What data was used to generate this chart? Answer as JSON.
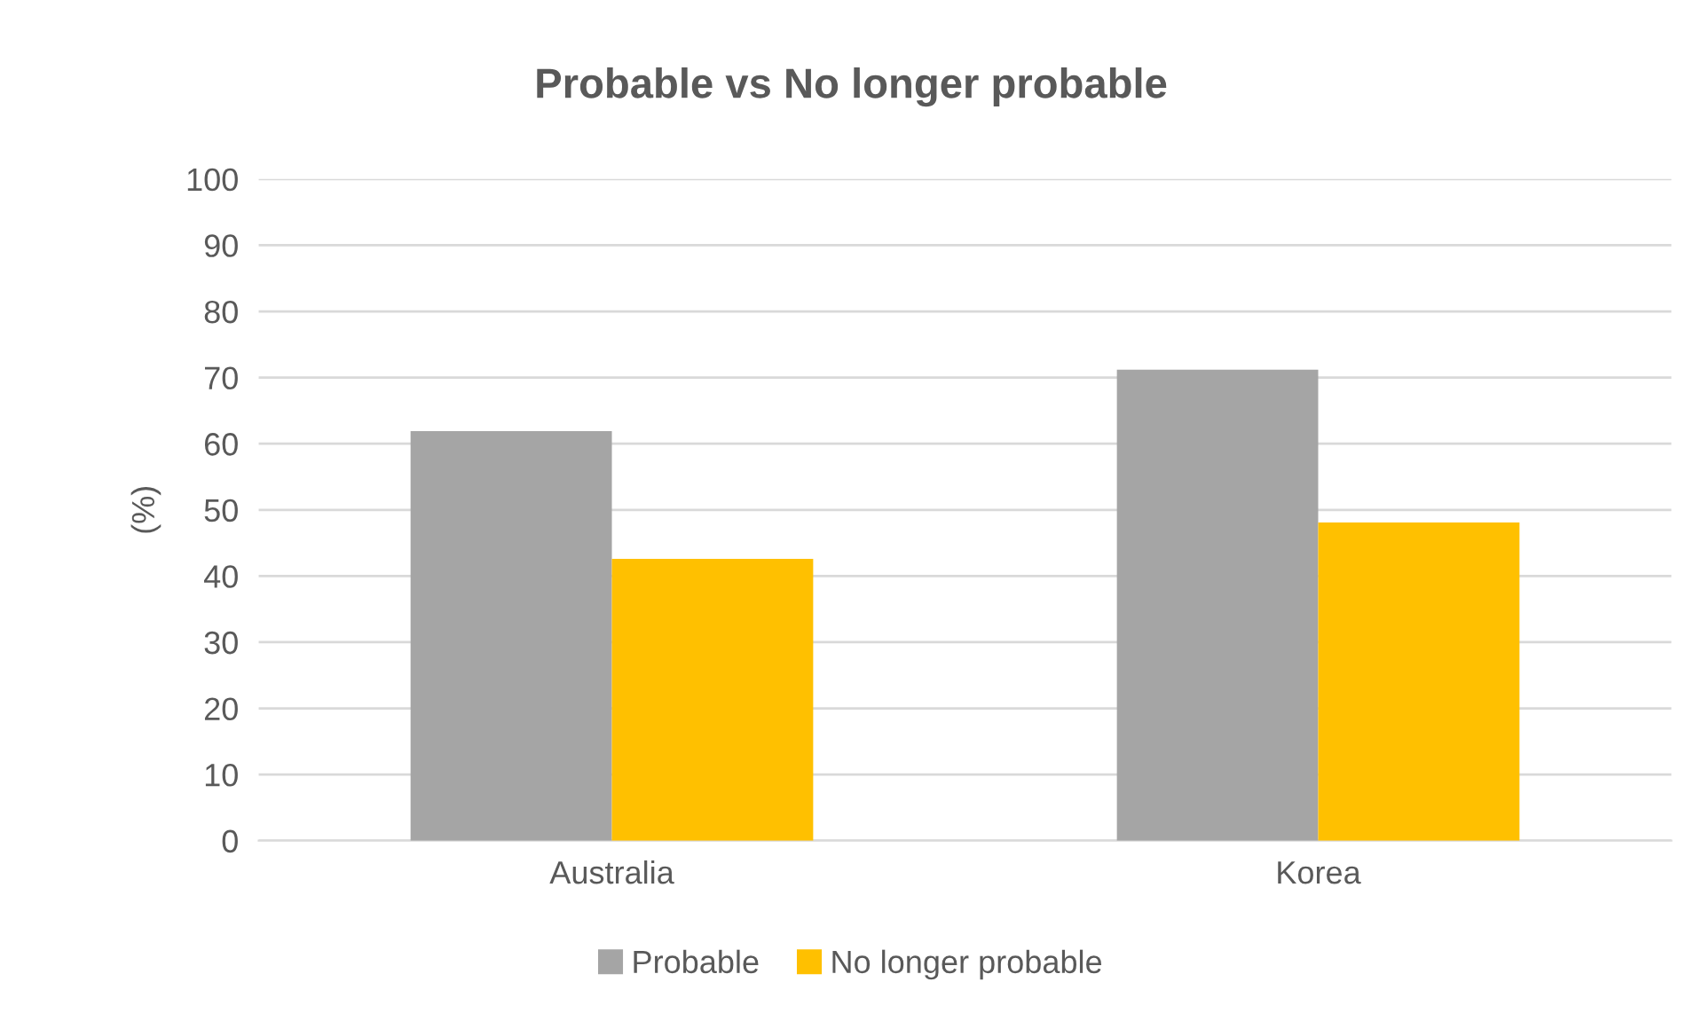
{
  "chart_data": {
    "type": "bar",
    "title": "Probable vs No longer probable",
    "ylabel": "(%)",
    "categories": [
      "Australia",
      "Korea"
    ],
    "series": [
      {
        "name": "Probable",
        "color": "#a5a5a5",
        "values": [
          61.9,
          71.2
        ]
      },
      {
        "name": "No longer probable",
        "color": "#ffc000",
        "values": [
          42.6,
          48.1
        ]
      }
    ],
    "ylim": [
      0,
      100
    ],
    "yticks": [
      0,
      10,
      20,
      30,
      40,
      50,
      60,
      70,
      80,
      90,
      100
    ],
    "grid": "y",
    "legend": "bottom"
  }
}
